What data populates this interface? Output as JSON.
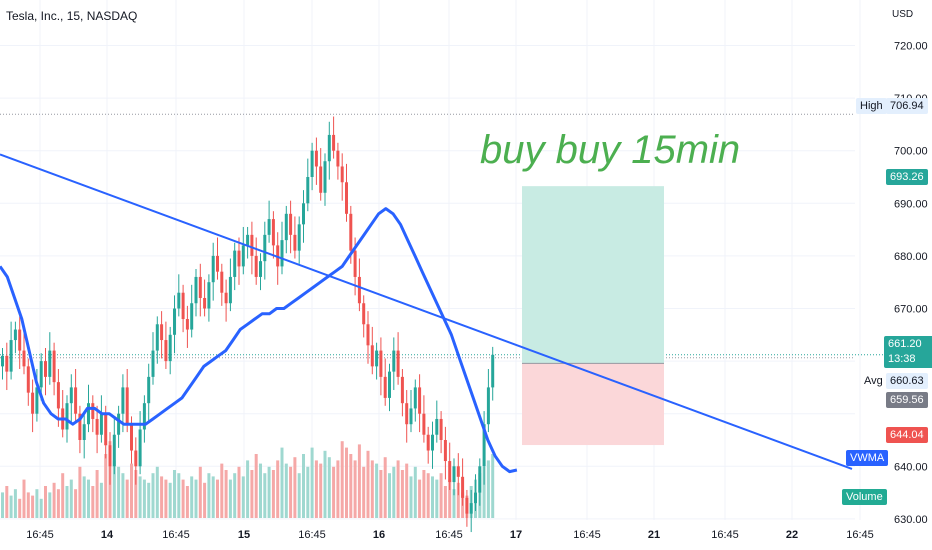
{
  "header": {
    "symbol_title": "Tesla, Inc., 15, NASDAQ",
    "currency": "USD"
  },
  "annotation": {
    "text": "buy buy 15min",
    "color": "#4caf50"
  },
  "price_axis": {
    "ticks": [
      "720.00",
      "710.00",
      "700.00",
      "690.00",
      "680.00",
      "670.00",
      "660.00",
      "650.00",
      "640.00",
      "630.00"
    ],
    "tick_values": [
      720,
      710,
      700,
      690,
      680,
      670,
      660,
      650,
      640,
      630
    ]
  },
  "time_axis": {
    "labels": [
      "16:45",
      "14",
      "16:45",
      "15",
      "16:45",
      "16",
      "16:45",
      "17",
      "16:45",
      "21",
      "16:45",
      "22",
      "16:45"
    ],
    "bold": [
      false,
      true,
      false,
      true,
      false,
      true,
      false,
      true,
      false,
      true,
      false,
      true,
      false
    ]
  },
  "labels": {
    "high_label": "High",
    "high_value": "706.94",
    "target_value": "693.26",
    "last_price": "661.20",
    "countdown": "13:38",
    "avg_label": "Avg",
    "avg_value": "660.63",
    "entry_value": "659.56",
    "stop_value": "644.04",
    "vwma_label": "VWMA",
    "volume_label": "Volume"
  },
  "colors": {
    "up": "#26a69a",
    "down": "#ef5350",
    "vwma": "#2962ff",
    "trendline": "#2962ff",
    "profit_zone": "#c8ebe3",
    "loss_zone": "#fbd7d9"
  },
  "chart_data": {
    "type": "candlestick",
    "symbol": "Tesla, Inc.",
    "interval": "15",
    "exchange": "NASDAQ",
    "ylim": [
      629,
      723
    ],
    "days": [
      "13",
      "14",
      "15",
      "16",
      "17"
    ],
    "key_levels": {
      "high": 706.94,
      "last": 661.2,
      "avg": 660.63,
      "entry": 659.56,
      "target": 693.26,
      "stop": 644.04
    },
    "closes": [
      661,
      658,
      664,
      666,
      662,
      659,
      654,
      650,
      655,
      660,
      657,
      662,
      656,
      651,
      647,
      652,
      655,
      650,
      645,
      648,
      652,
      649,
      646,
      650,
      644,
      640,
      646,
      650,
      655,
      648,
      643,
      640,
      647,
      652,
      657,
      662,
      667,
      664,
      660,
      665,
      670,
      673,
      668,
      666,
      671,
      676,
      672,
      670,
      675,
      680,
      677,
      673,
      671,
      676,
      681,
      678,
      682,
      684,
      680,
      676,
      679,
      684,
      687,
      682,
      678,
      683,
      688,
      684,
      681,
      686,
      690,
      695,
      700,
      697,
      692,
      698,
      703,
      700,
      697,
      694,
      688,
      681,
      676,
      671,
      667,
      663,
      659,
      662,
      657,
      653,
      658,
      662,
      657,
      652,
      648,
      651,
      655,
      650,
      646,
      643,
      646,
      649,
      645,
      641,
      637,
      640,
      638,
      634,
      631,
      633,
      635,
      640,
      648,
      655,
      661.2
    ],
    "volume_scale": [
      8,
      10,
      7,
      9,
      6,
      12,
      8,
      7,
      9,
      6,
      10,
      8,
      11,
      9,
      14,
      10,
      12,
      9,
      16,
      13,
      12,
      10,
      15,
      11,
      20,
      24,
      18,
      16,
      14,
      12,
      17,
      15,
      13,
      12,
      11,
      14,
      16,
      13,
      12,
      11,
      15,
      14,
      12,
      10,
      13,
      12,
      16,
      11,
      14,
      13,
      12,
      17,
      15,
      12,
      14,
      16,
      13,
      18,
      15,
      20,
      17,
      14,
      16,
      15,
      18,
      22,
      17,
      16,
      19,
      14,
      20,
      16,
      22,
      18,
      17,
      21,
      19,
      16,
      18,
      24,
      22,
      20,
      18,
      23,
      16,
      21,
      18,
      17,
      15,
      19,
      14,
      16,
      18,
      15,
      17,
      13,
      16,
      12,
      15,
      14,
      13,
      12,
      14,
      10,
      12,
      9,
      11,
      8,
      7,
      10,
      12,
      14,
      16,
      18,
      20
    ],
    "vwma": [
      678,
      676,
      672,
      668,
      662,
      656,
      652,
      650,
      649,
      649,
      648,
      649,
      651,
      651,
      650,
      650,
      649,
      648,
      648,
      648,
      648,
      649,
      650,
      651,
      652,
      653,
      655,
      657,
      659,
      660,
      661,
      662,
      664,
      666,
      667,
      668,
      669,
      669,
      670,
      670,
      671,
      672,
      673,
      674,
      675,
      676,
      677,
      678,
      680,
      682,
      684,
      686,
      688,
      689,
      688,
      686,
      683,
      680,
      677,
      674,
      671,
      668,
      665,
      661,
      657,
      653,
      649,
      645,
      642,
      640,
      639,
      639.3
    ],
    "trendline": {
      "from": {
        "index": 0,
        "price": 699.3
      },
      "to": {
        "index": 160,
        "price": 639.5
      }
    }
  }
}
